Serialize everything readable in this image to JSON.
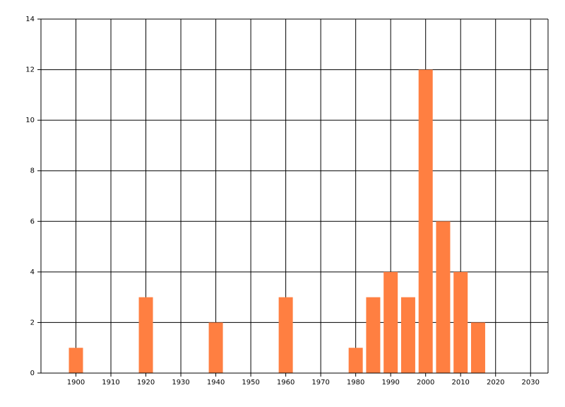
{
  "chart_data": {
    "type": "bar",
    "x": [
      1900,
      1920,
      1940,
      1960,
      1980,
      1985,
      1990,
      1995,
      2000,
      2005,
      2010,
      2015
    ],
    "values": [
      1,
      3,
      2,
      3,
      1,
      3,
      4,
      3,
      12,
      6,
      4,
      2
    ],
    "color": "#ff7f41",
    "xlim": [
      1890,
      2035
    ],
    "xticks": [
      1900,
      1910,
      1920,
      1930,
      1940,
      1950,
      1960,
      1970,
      1980,
      1990,
      2000,
      2010,
      2020,
      2030
    ],
    "ylim": [
      0,
      14
    ],
    "yticks": [
      0,
      2,
      4,
      6,
      8,
      10,
      12,
      14
    ],
    "grid": true
  }
}
